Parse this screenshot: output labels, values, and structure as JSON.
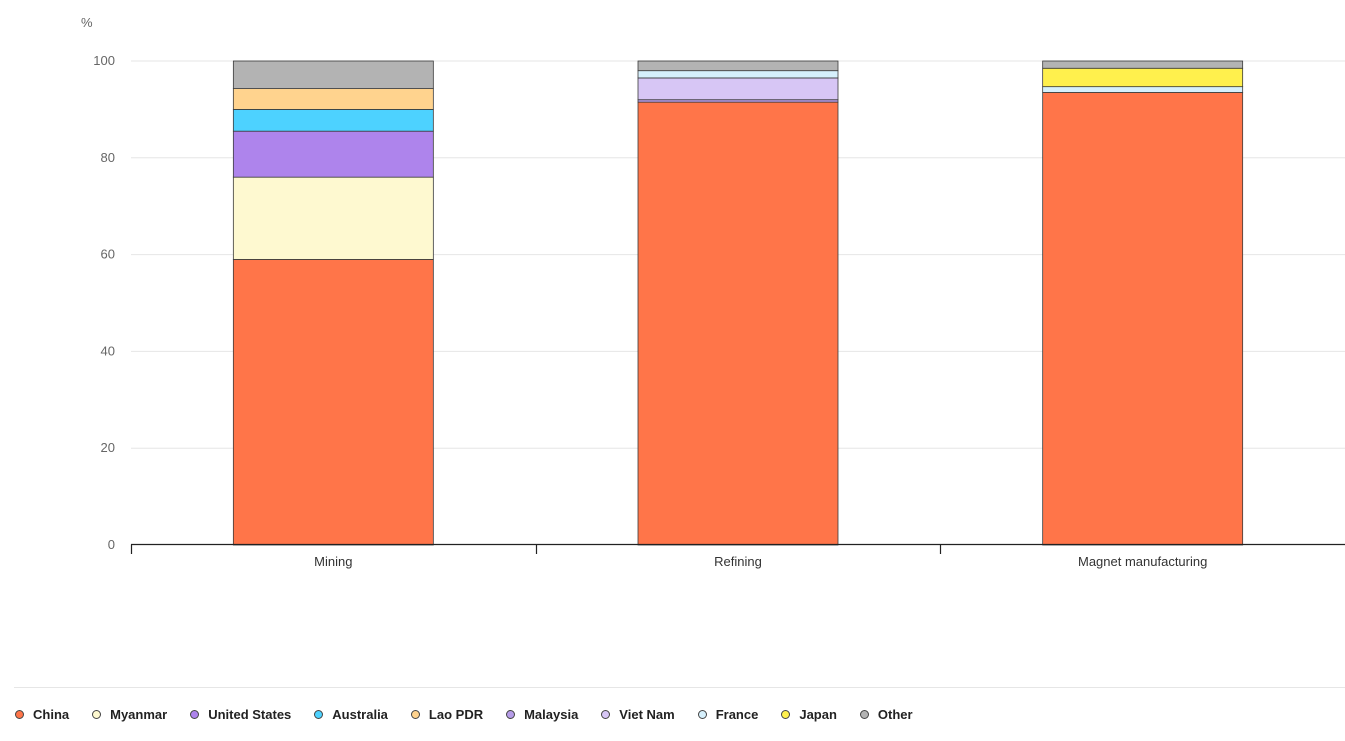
{
  "chart_data": {
    "type": "bar",
    "stacked": true,
    "unit_label": "%",
    "xlabel": "",
    "ylabel": "%",
    "ylim": [
      0,
      100
    ],
    "yticks": [
      0,
      20,
      40,
      60,
      80,
      100
    ],
    "grid": true,
    "legend_position": "bottom",
    "categories": [
      "Mining",
      "Refining",
      "Magnet manufacturing"
    ],
    "series": [
      {
        "name": "China",
        "color": "#FF7549",
        "values": [
          59,
          91.5,
          93.5
        ]
      },
      {
        "name": "Myanmar",
        "color": "#FEF9D0",
        "values": [
          17,
          0,
          0
        ]
      },
      {
        "name": "United States",
        "color": "#AE84EC",
        "values": [
          9.5,
          0,
          0
        ]
      },
      {
        "name": "Australia",
        "color": "#4DD2FF",
        "values": [
          4.5,
          0,
          0
        ]
      },
      {
        "name": "Lao PDR",
        "color": "#FFD38E",
        "values": [
          4.3,
          0,
          0
        ]
      },
      {
        "name": "Malaysia",
        "color": "#B69CE8",
        "values": [
          0,
          0.5,
          0
        ]
      },
      {
        "name": "Viet Nam",
        "color": "#D7C6F5",
        "values": [
          0,
          4.5,
          0
        ]
      },
      {
        "name": "France",
        "color": "#D6F0FC",
        "values": [
          0,
          1.5,
          1.2
        ]
      },
      {
        "name": "Japan",
        "color": "#FFF04D",
        "values": [
          0,
          0,
          3.8
        ]
      },
      {
        "name": "Other",
        "color": "#B3B3B3",
        "values": [
          5.7,
          2,
          1.5
        ]
      }
    ]
  }
}
